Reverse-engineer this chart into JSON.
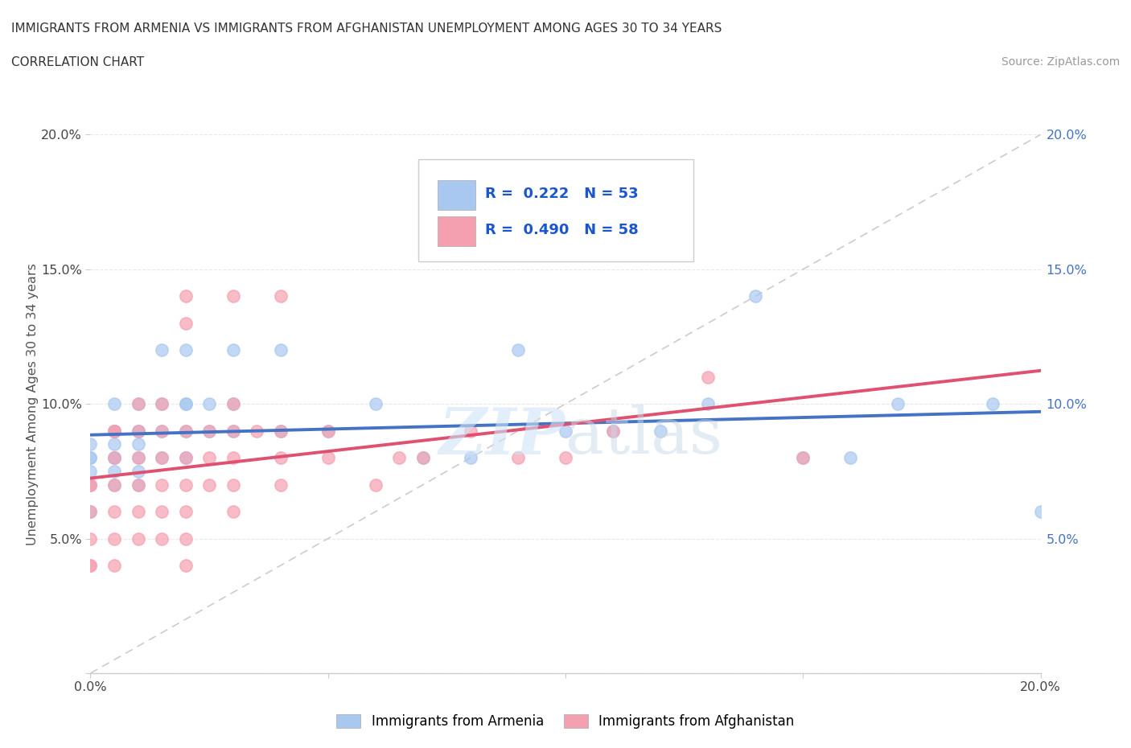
{
  "title_line1": "IMMIGRANTS FROM ARMENIA VS IMMIGRANTS FROM AFGHANISTAN UNEMPLOYMENT AMONG AGES 30 TO 34 YEARS",
  "title_line2": "CORRELATION CHART",
  "source_text": "Source: ZipAtlas.com",
  "ylabel": "Unemployment Among Ages 30 to 34 years",
  "xlim": [
    0.0,
    0.2
  ],
  "ylim": [
    0.0,
    0.2
  ],
  "xtick_labels": [
    "0.0%",
    "",
    "",
    "",
    "20.0%"
  ],
  "xtick_values": [
    0.0,
    0.05,
    0.1,
    0.15,
    0.2
  ],
  "ytick_labels": [
    "",
    "5.0%",
    "10.0%",
    "15.0%",
    "20.0%"
  ],
  "ytick_values": [
    0.0,
    0.05,
    0.1,
    0.15,
    0.2
  ],
  "ytick_right_labels": [
    "",
    "5.0%",
    "10.0%",
    "15.0%",
    "20.0%"
  ],
  "armenia_color": "#a8c8f0",
  "afghanistan_color": "#f5a0b0",
  "armenia_R": 0.222,
  "armenia_N": 53,
  "afghanistan_R": 0.49,
  "afghanistan_N": 58,
  "legend_text_color": "#1a56cc",
  "trendline_armenia": "#4472c4",
  "trendline_afghanistan": "#e05070",
  "watermark_zip": "ZIP",
  "watermark_atlas": "atlas",
  "armenia_x": [
    0.0,
    0.0,
    0.0,
    0.0,
    0.0,
    0.0,
    0.005,
    0.005,
    0.005,
    0.005,
    0.005,
    0.005,
    0.005,
    0.005,
    0.005,
    0.01,
    0.01,
    0.01,
    0.01,
    0.01,
    0.01,
    0.01,
    0.015,
    0.015,
    0.015,
    0.015,
    0.02,
    0.02,
    0.02,
    0.02,
    0.02,
    0.025,
    0.025,
    0.03,
    0.03,
    0.03,
    0.04,
    0.04,
    0.05,
    0.06,
    0.07,
    0.08,
    0.09,
    0.1,
    0.11,
    0.12,
    0.13,
    0.14,
    0.15,
    0.16,
    0.17,
    0.19,
    0.2
  ],
  "armenia_y": [
    0.06,
    0.07,
    0.075,
    0.08,
    0.08,
    0.085,
    0.07,
    0.075,
    0.08,
    0.08,
    0.085,
    0.09,
    0.09,
    0.09,
    0.1,
    0.07,
    0.075,
    0.08,
    0.085,
    0.09,
    0.09,
    0.1,
    0.08,
    0.09,
    0.1,
    0.12,
    0.08,
    0.09,
    0.1,
    0.1,
    0.12,
    0.09,
    0.1,
    0.09,
    0.1,
    0.12,
    0.09,
    0.12,
    0.09,
    0.1,
    0.08,
    0.08,
    0.12,
    0.09,
    0.09,
    0.09,
    0.1,
    0.14,
    0.08,
    0.08,
    0.1,
    0.1,
    0.06
  ],
  "afghanistan_x": [
    0.0,
    0.0,
    0.0,
    0.0,
    0.0,
    0.0,
    0.005,
    0.005,
    0.005,
    0.005,
    0.005,
    0.005,
    0.005,
    0.01,
    0.01,
    0.01,
    0.01,
    0.01,
    0.01,
    0.015,
    0.015,
    0.015,
    0.015,
    0.015,
    0.015,
    0.02,
    0.02,
    0.02,
    0.02,
    0.02,
    0.02,
    0.02,
    0.02,
    0.025,
    0.025,
    0.025,
    0.03,
    0.03,
    0.03,
    0.03,
    0.03,
    0.03,
    0.035,
    0.04,
    0.04,
    0.04,
    0.04,
    0.05,
    0.05,
    0.06,
    0.065,
    0.07,
    0.08,
    0.09,
    0.1,
    0.11,
    0.13,
    0.15
  ],
  "afghanistan_y": [
    0.04,
    0.04,
    0.05,
    0.06,
    0.07,
    0.07,
    0.04,
    0.05,
    0.06,
    0.07,
    0.08,
    0.09,
    0.09,
    0.05,
    0.06,
    0.07,
    0.08,
    0.09,
    0.1,
    0.05,
    0.06,
    0.07,
    0.08,
    0.09,
    0.1,
    0.04,
    0.05,
    0.06,
    0.07,
    0.08,
    0.09,
    0.13,
    0.14,
    0.07,
    0.08,
    0.09,
    0.06,
    0.07,
    0.08,
    0.09,
    0.1,
    0.14,
    0.09,
    0.07,
    0.08,
    0.09,
    0.14,
    0.08,
    0.09,
    0.07,
    0.08,
    0.08,
    0.09,
    0.08,
    0.08,
    0.09,
    0.11,
    0.08
  ],
  "background_color": "#ffffff",
  "grid_color": "#e8e8e8"
}
